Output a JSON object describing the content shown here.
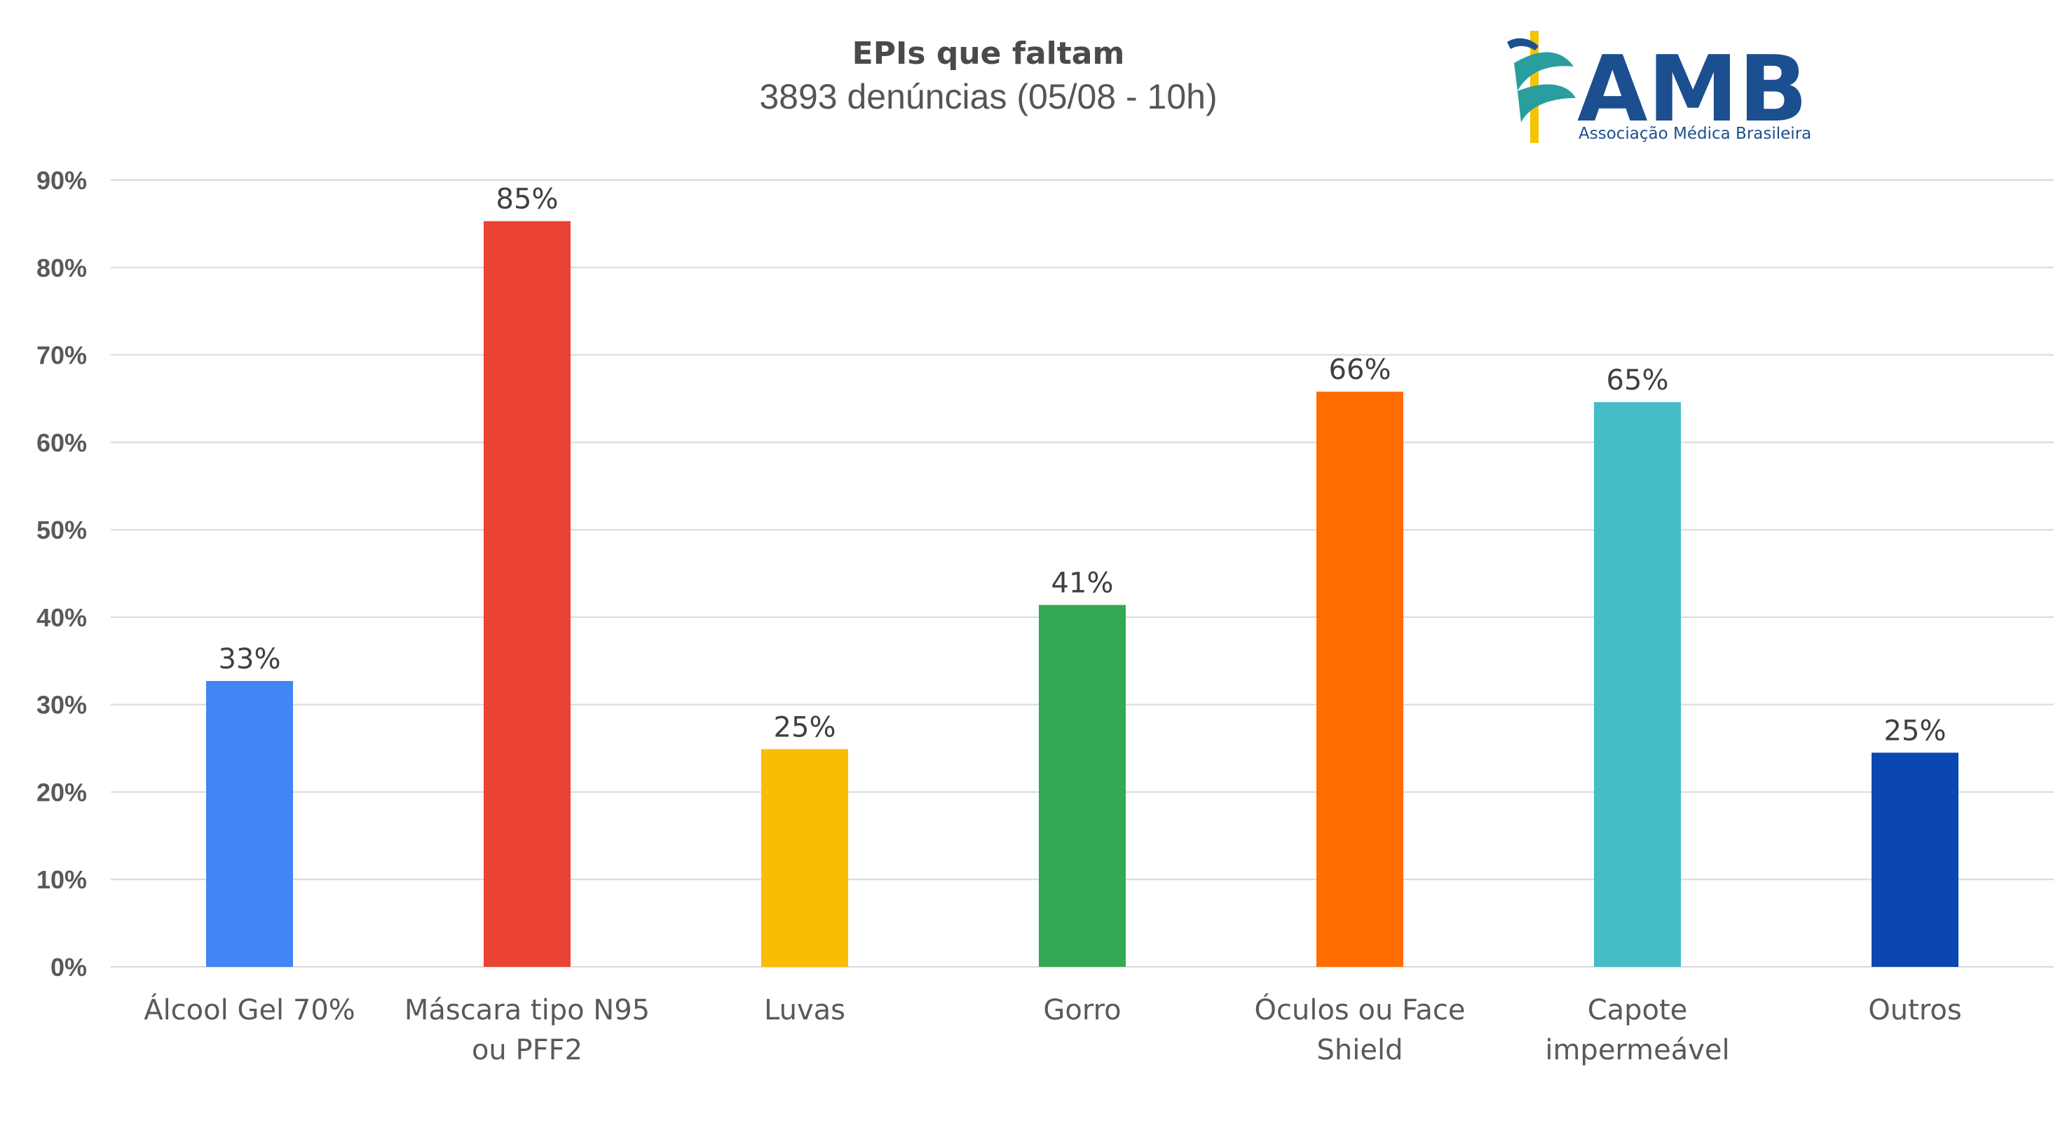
{
  "chart_data": {
    "type": "bar",
    "title": "EPIs que faltam",
    "subtitle": "3893 denúncias (05/08 - 10h)",
    "categories": [
      [
        "Álcool Gel 70%"
      ],
      [
        "Máscara tipo N95",
        "ou PFF2"
      ],
      [
        "Luvas"
      ],
      [
        "Gorro"
      ],
      [
        "Óculos ou Face",
        "Shield"
      ],
      [
        "Capote",
        "impermeável"
      ],
      [
        "Outros"
      ]
    ],
    "values": [
      32.7,
      85.3,
      24.9,
      41.4,
      65.8,
      64.6,
      24.5
    ],
    "data_labels": [
      "33%",
      "85%",
      "25%",
      "41%",
      "66%",
      "65%",
      "25%"
    ],
    "colors": [
      "#4285f4",
      "#ea4335",
      "#fbbc04",
      "#34a853",
      "#ff6d00",
      "#46bdc6",
      "#0b47b0"
    ],
    "ylim": [
      0,
      90
    ],
    "yticks": [
      "0%",
      "10%",
      "20%",
      "30%",
      "40%",
      "50%",
      "60%",
      "70%",
      "80%",
      "90%"
    ],
    "grid": true,
    "legend": "none"
  },
  "logo": {
    "name": "AMB",
    "tagline": "Associação Médica Brasileira",
    "colors": {
      "primary": "#1b4f8f",
      "teal": "#2a9d9e",
      "gold": "#f5c400"
    }
  }
}
